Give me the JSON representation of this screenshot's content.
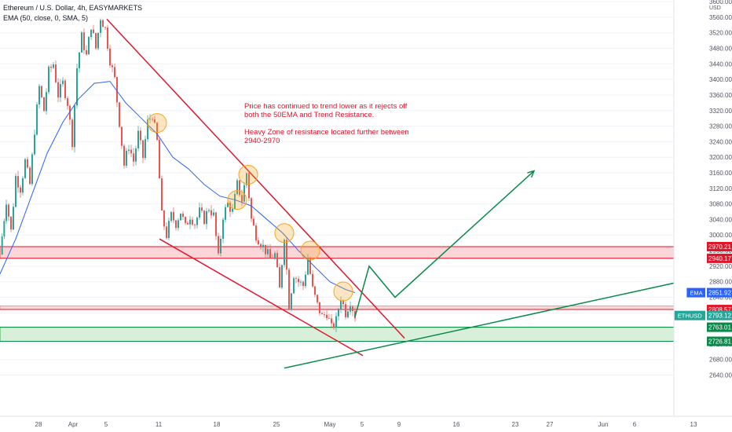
{
  "header": {
    "title": "Ethereum / U.S. Dollar, 4h, EASYMARKETS",
    "indicator": "EMA (50, close, 0, SMA, 5)"
  },
  "annotation": {
    "line1": "Price has continued to trend lower as it rejects off",
    "line2": "both the 50EMA and Trend Resistance.",
    "line3": "Heavy Zone of resistance located further between",
    "line4": "2940-2970"
  },
  "currency_label": "USD",
  "colors": {
    "bull": "#26a69a",
    "bear": "#ef5350",
    "ema": "#2962ff",
    "trendline_red": "#e0162b",
    "trendline_green": "#0a8a4a",
    "resistance_zone": "#fbd6d8",
    "support_zone": "#d8f0da",
    "marker_circle": "#f5a623"
  },
  "chart_data": {
    "type": "candlestick",
    "symbol": "ETHUSD",
    "timeframe": "4h",
    "ylim": [
      2620,
      3680
    ],
    "y_ticks": [
      2640,
      2680,
      2720,
      2760,
      2800,
      2840,
      2880,
      2920,
      2960,
      3000,
      3040,
      3080,
      3120,
      3160,
      3200,
      3240,
      3280,
      3320,
      3360,
      3400,
      3440,
      3480,
      3520,
      3560,
      3600,
      3640
    ],
    "x_ticks": [
      "28",
      "Apr",
      "5",
      "11",
      "18",
      "25",
      "May",
      "5",
      "9",
      "16",
      "23",
      "27",
      "Jun",
      "6",
      "13"
    ],
    "price_labels": [
      {
        "text": "2970.21",
        "value": 2970.21,
        "color": "#e0162b"
      },
      {
        "text": "2940.17",
        "value": 2940.17,
        "color": "#e0162b"
      },
      {
        "text": "2851.92",
        "value": 2851.92,
        "color": "#2962ff",
        "tag": "EMA"
      },
      {
        "text": "2808.57",
        "value": 2808.57,
        "color": "#e0162b"
      },
      {
        "text": "2793.12",
        "value": 2793.12,
        "color": "#26a69a",
        "tag": "ETHUSD"
      },
      {
        "text": "2763.01",
        "value": 2763.01,
        "color": "#0a8a4a"
      },
      {
        "text": "2726.81",
        "value": 2726.81,
        "color": "#0a8a4a"
      }
    ],
    "zones": [
      {
        "name": "resistance",
        "from": 2940.17,
        "to": 2970.21
      },
      {
        "name": "minor resistance",
        "from": 2808.57,
        "to": 2818
      },
      {
        "name": "support",
        "from": 2726.81,
        "to": 2763.01
      }
    ],
    "price_path": [
      [
        0,
        2950
      ],
      [
        8,
        3090
      ],
      [
        14,
        3010
      ],
      [
        20,
        3150
      ],
      [
        26,
        3120
      ],
      [
        32,
        3190
      ],
      [
        38,
        3130
      ],
      [
        44,
        3270
      ],
      [
        50,
        3380
      ],
      [
        56,
        3320
      ],
      [
        62,
        3420
      ],
      [
        68,
        3440
      ],
      [
        74,
        3360
      ],
      [
        80,
        3390
      ],
      [
        86,
        3340
      ],
      [
        92,
        3240
      ],
      [
        98,
        3430
      ],
      [
        104,
        3510
      ],
      [
        110,
        3460
      ],
      [
        116,
        3540
      ],
      [
        122,
        3480
      ],
      [
        128,
        3560
      ],
      [
        134,
        3530
      ],
      [
        140,
        3450
      ],
      [
        146,
        3400
      ],
      [
        152,
        3290
      ],
      [
        158,
        3180
      ],
      [
        164,
        3230
      ],
      [
        170,
        3190
      ],
      [
        176,
        3260
      ],
      [
        182,
        3200
      ],
      [
        188,
        3290
      ],
      [
        194,
        3310
      ],
      [
        200,
        3240
      ],
      [
        206,
        3050
      ],
      [
        212,
        3000
      ],
      [
        218,
        3050
      ],
      [
        224,
        3030
      ],
      [
        230,
        3060
      ],
      [
        236,
        3020
      ],
      [
        242,
        3050
      ],
      [
        248,
        3030
      ],
      [
        254,
        3060
      ],
      [
        260,
        3040
      ],
      [
        266,
        3070
      ],
      [
        272,
        3050
      ],
      [
        278,
        2940
      ],
      [
        284,
        3050
      ],
      [
        290,
        3080
      ],
      [
        296,
        3060
      ],
      [
        302,
        3130
      ],
      [
        308,
        3090
      ],
      [
        314,
        3160
      ],
      [
        320,
        3040
      ],
      [
        326,
        3000
      ],
      [
        332,
        2980
      ],
      [
        338,
        2960
      ],
      [
        344,
        2940
      ],
      [
        350,
        2950
      ],
      [
        356,
        2860
      ],
      [
        362,
        3000
      ],
      [
        368,
        2820
      ],
      [
        374,
        2900
      ],
      [
        380,
        2880
      ],
      [
        386,
        2870
      ],
      [
        392,
        2940
      ],
      [
        398,
        2860
      ],
      [
        404,
        2820
      ],
      [
        410,
        2790
      ],
      [
        416,
        2800
      ],
      [
        422,
        2760
      ],
      [
        428,
        2780
      ],
      [
        434,
        2840
      ],
      [
        440,
        2800
      ],
      [
        446,
        2830
      ],
      [
        452,
        2793
      ]
    ],
    "ema": [
      [
        0,
        2900
      ],
      [
        20,
        2990
      ],
      [
        40,
        3100
      ],
      [
        60,
        3210
      ],
      [
        80,
        3290
      ],
      [
        100,
        3350
      ],
      [
        120,
        3390
      ],
      [
        140,
        3395
      ],
      [
        160,
        3340
      ],
      [
        180,
        3300
      ],
      [
        200,
        3260
      ],
      [
        220,
        3200
      ],
      [
        240,
        3170
      ],
      [
        260,
        3130
      ],
      [
        280,
        3100
      ],
      [
        300,
        3090
      ],
      [
        320,
        3075
      ],
      [
        340,
        3040
      ],
      [
        360,
        3005
      ],
      [
        380,
        2960
      ],
      [
        400,
        2920
      ],
      [
        420,
        2880
      ],
      [
        440,
        2860
      ],
      [
        452,
        2852
      ]
    ],
    "trendlines": [
      {
        "name": "trend resistance",
        "points": [
          [
            136,
            3555
          ],
          [
            515,
            2735
          ]
        ]
      },
      {
        "name": "lower channel",
        "points": [
          [
            203,
            2990
          ],
          [
            462,
            2690
          ]
        ]
      },
      {
        "name": "rising support",
        "points": [
          [
            362,
            2658
          ],
          [
            900,
            2895
          ]
        ]
      }
    ],
    "projection": [
      [
        452,
        2790
      ],
      [
        470,
        2920
      ],
      [
        503,
        2840
      ],
      [
        680,
        3165
      ]
    ],
    "markers": [
      {
        "x": 200,
        "y": 3288
      },
      {
        "x": 302,
        "y": 3090
      },
      {
        "x": 316,
        "y": 3155
      },
      {
        "x": 362,
        "y": 3005
      },
      {
        "x": 395,
        "y": 2960
      },
      {
        "x": 437,
        "y": 2855
      }
    ]
  }
}
